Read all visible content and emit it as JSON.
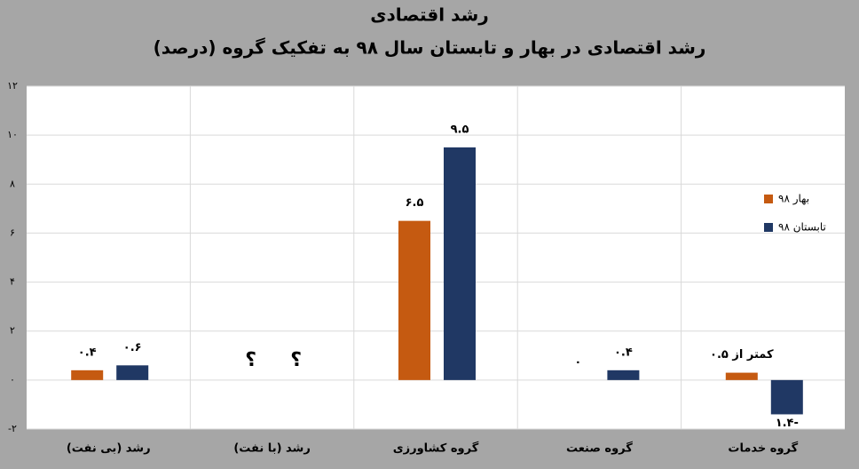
{
  "chart_data": {
    "type": "bar",
    "title": "رشد اقتصادی",
    "subtitle": "رشد اقتصادی در بهار و تابستان سال ۹۸ به تفکیک گروه (درصد)",
    "categories": [
      "رشد (بی نفت)",
      "رشد (با نفت)",
      "گروه کشاورزی",
      "گروه صنعت",
      "گروه خدمات"
    ],
    "series": [
      {
        "name": "بهار ۹۸",
        "color": "#c55a11",
        "values": [
          0.4,
          null,
          6.5,
          0,
          0.3
        ],
        "value_labels": [
          "۰.۴",
          "؟",
          "۶.۵",
          "۰",
          "کمتر از ۰.۵"
        ]
      },
      {
        "name": "تابستان ۹۸",
        "color": "#203864",
        "values": [
          0.6,
          null,
          9.5,
          0.4,
          -1.4
        ],
        "value_labels": [
          "۰.۶",
          "؟",
          "۹.۵",
          "۰.۴",
          "-۱.۴"
        ]
      }
    ],
    "ylim": [
      -2,
      12
    ],
    "yticks": [
      {
        "value": -2,
        "label": "-۲"
      },
      {
        "value": 0,
        "label": "۰"
      },
      {
        "value": 2,
        "label": "۲"
      },
      {
        "value": 4,
        "label": "۴"
      },
      {
        "value": 6,
        "label": "۶"
      },
      {
        "value": 8,
        "label": "۸"
      },
      {
        "value": 10,
        "label": "۱۰"
      },
      {
        "value": 12,
        "label": "۱۲"
      }
    ],
    "grid": true,
    "legend": "right"
  }
}
